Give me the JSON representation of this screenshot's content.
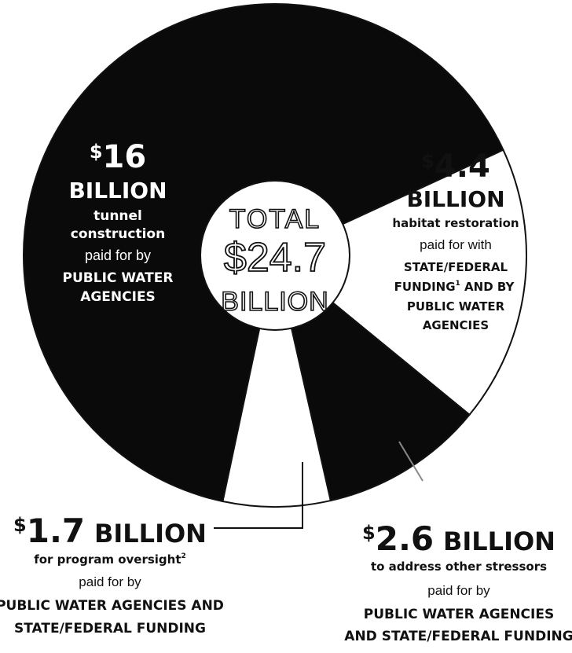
{
  "chart_data": {
    "type": "pie",
    "style": "donut",
    "colors": {
      "dark": "#0a0a0a",
      "light": "#ffffff",
      "ink": "#111111"
    },
    "center": {
      "line1": "TOTAL",
      "line2": "$24.7",
      "line3": "BILLION",
      "total": 24.7
    },
    "slices": [
      {
        "value": 16,
        "fill": "dark",
        "amount": "16",
        "unit": "BILLION",
        "purpose": [
          "tunnel",
          "construction"
        ],
        "paid_line": [
          "paid for by"
        ],
        "payer": [
          "PUBLIC WATER",
          "AGENCIES"
        ]
      },
      {
        "value": 4.4,
        "fill": "light",
        "amount": "4.4",
        "unit": "BILLION",
        "purpose": [
          "habitat restoration"
        ],
        "paid_line": [
          "paid for with"
        ],
        "payer": [
          "STATE/FEDERAL",
          "FUNDING",
          "AND BY",
          "PUBLIC WATER",
          "AGENCIES"
        ]
      },
      {
        "value": 2.6,
        "fill": "dark",
        "amount": "2.6",
        "unit": "BILLION",
        "purpose": [
          "to address other stressors"
        ],
        "paid_line": [
          "paid for by"
        ],
        "payer": [
          "PUBLIC WATER AGENCIES",
          "AND STATE/FEDERAL FUNDING"
        ]
      },
      {
        "value": 1.7,
        "fill": "light",
        "amount": "1.7",
        "unit": "BILLION",
        "purpose": [
          "for program oversight"
        ],
        "paid_line": [
          "paid for by"
        ],
        "payer": [
          "PUBLIC WATER AGENCIES AND",
          "STATE/FEDERAL FUNDING"
        ]
      }
    ],
    "footnotes": {
      "funding": "1",
      "oversight": "2"
    }
  }
}
